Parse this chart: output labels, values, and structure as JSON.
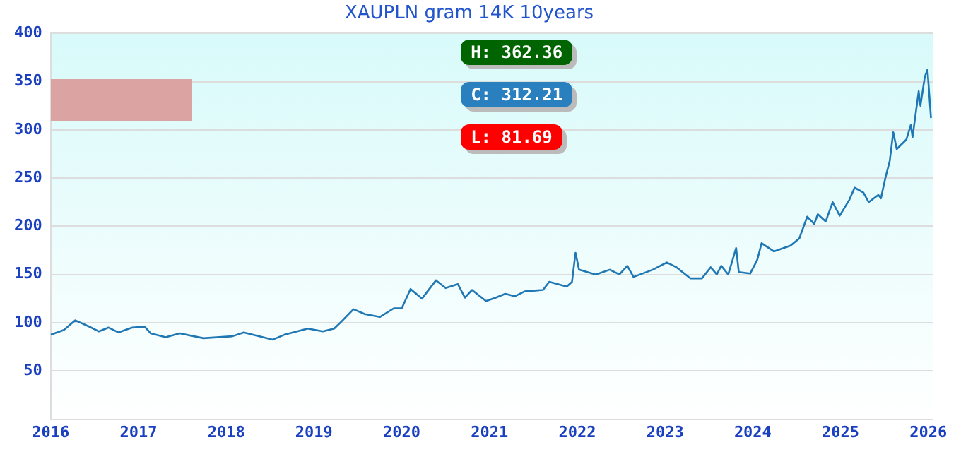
{
  "chart_data": {
    "type": "line",
    "title": "XAUPLN gram 14K 10years",
    "series": [
      {
        "color": "#1f77b4",
        "x": [
          2016.0,
          2016.15,
          2016.28,
          2016.44,
          2016.55,
          2016.66,
          2016.77,
          2016.93,
          2017.07,
          2017.14,
          2017.31,
          2017.47,
          2017.74,
          2018.07,
          2018.2,
          2018.42,
          2018.53,
          2018.66,
          2018.93,
          2019.1,
          2019.23,
          2019.31,
          2019.45,
          2019.58,
          2019.75,
          2019.91,
          2020.0,
          2020.1,
          2020.23,
          2020.39,
          2020.5,
          2020.64,
          2020.72,
          2020.8,
          2020.96,
          2021.07,
          2021.18,
          2021.29,
          2021.4,
          2021.61,
          2021.68,
          2021.88,
          2021.94,
          2021.98,
          2022.02,
          2022.21,
          2022.37,
          2022.48,
          2022.57,
          2022.64,
          2022.86,
          2023.02,
          2023.13,
          2023.29,
          2023.42,
          2023.52,
          2023.59,
          2023.64,
          2023.72,
          2023.81,
          2023.84,
          2023.97,
          2024.05,
          2024.1,
          2024.24,
          2024.43,
          2024.53,
          2024.62,
          2024.7,
          2024.74,
          2024.83,
          2024.91,
          2024.99,
          2025.1,
          2025.16,
          2025.26,
          2025.32,
          2025.43,
          2025.46,
          2025.51,
          2025.56,
          2025.6,
          2025.64,
          2025.75,
          2025.8,
          2025.82,
          2025.89,
          2025.91,
          2025.96,
          2025.99,
          2026.03
        ],
        "values": [
          87.5,
          92.5,
          102.5,
          96,
          91,
          95,
          90,
          95,
          96,
          89,
          85,
          89,
          84,
          86,
          90,
          85,
          82.5,
          87.5,
          94,
          91,
          94,
          101,
          114,
          109,
          106,
          115,
          115,
          135,
          125,
          144,
          136,
          140,
          126,
          134,
          122.5,
          126,
          130,
          127.5,
          132.5,
          134,
          142.5,
          137.5,
          142.5,
          172.5,
          155,
          150,
          155,
          150,
          159,
          147.5,
          155,
          162.5,
          157.5,
          146,
          146,
          157.5,
          150,
          159,
          150,
          177.5,
          152.5,
          151,
          165,
          182.5,
          174,
          180,
          187.5,
          210,
          202.5,
          212.5,
          205,
          225,
          211,
          227.5,
          240,
          235,
          225,
          232.5,
          229,
          250,
          267.5,
          297.5,
          280,
          290,
          305,
          292.5,
          340,
          325,
          355,
          362.36,
          312.21
        ]
      }
    ],
    "xlim": [
      2016,
      2026.05
    ],
    "xticks": [
      2016,
      2017,
      2018,
      2019,
      2020,
      2021,
      2022,
      2023,
      2024,
      2025,
      2026
    ],
    "ylim": [
      0,
      400
    ],
    "yticks": [
      50,
      100,
      150,
      200,
      250,
      300,
      350,
      400
    ],
    "grid": "y",
    "legend": false,
    "annotations": [
      "H: 362.36",
      "C: 312.21",
      "L: 81.69"
    ]
  }
}
